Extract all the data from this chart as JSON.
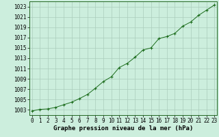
{
  "x": [
    0,
    1,
    2,
    3,
    4,
    5,
    6,
    7,
    8,
    9,
    10,
    11,
    12,
    13,
    14,
    15,
    16,
    17,
    18,
    19,
    20,
    21,
    22,
    23
  ],
  "y": [
    1002.8,
    1003.1,
    1003.2,
    1003.5,
    1004.0,
    1004.5,
    1005.2,
    1006.0,
    1007.2,
    1008.5,
    1009.4,
    1011.2,
    1012.0,
    1013.2,
    1014.6,
    1015.0,
    1016.8,
    1017.2,
    1017.8,
    1019.2,
    1020.0,
    1021.3,
    1022.3,
    1023.3
  ],
  "xlabel": "Graphe pression niveau de la mer (hPa)",
  "ylim": [
    1002,
    1024
  ],
  "xlim": [
    -0.3,
    23.3
  ],
  "yticks": [
    1003,
    1005,
    1007,
    1009,
    1011,
    1013,
    1015,
    1017,
    1019,
    1021,
    1023
  ],
  "xticks": [
    0,
    1,
    2,
    3,
    4,
    5,
    6,
    7,
    8,
    9,
    10,
    11,
    12,
    13,
    14,
    15,
    16,
    17,
    18,
    19,
    20,
    21,
    22,
    23
  ],
  "line_color": "#1a6b1a",
  "marker_color": "#1a6b1a",
  "bg_color": "#cceedd",
  "grid_color": "#aaccbb",
  "xlabel_fontsize": 6.5,
  "tick_fontsize": 5.5
}
